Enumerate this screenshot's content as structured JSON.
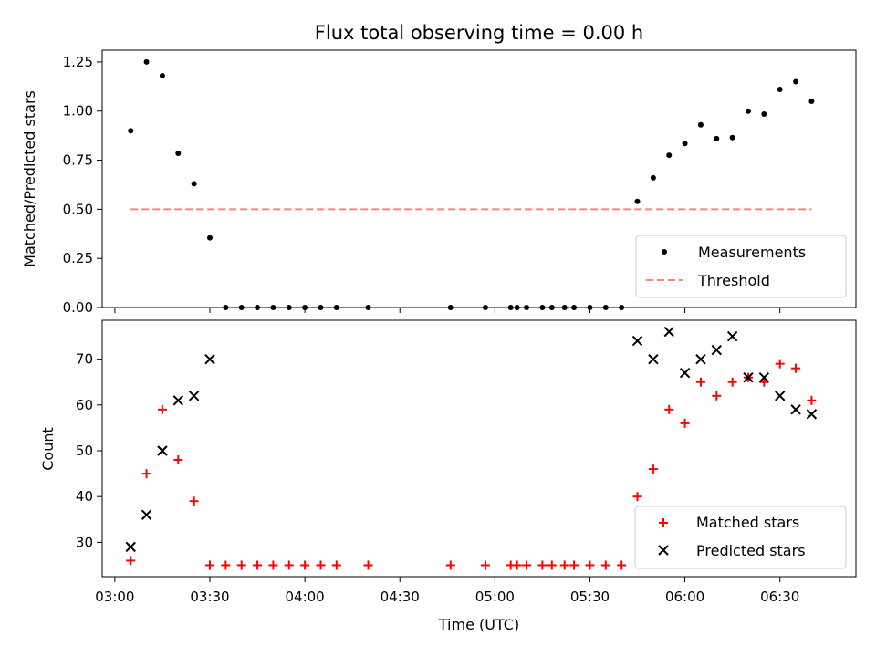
{
  "chart_data": [
    {
      "type": "scatter",
      "title": "Flux total observing time = 0.00 h",
      "ylabel": "Matched/Predicted stars",
      "xlabel": "",
      "ylim": [
        0,
        1.31
      ],
      "xlim": [
        "02:56",
        "06:54"
      ],
      "y_ticks": [
        0.0,
        0.25,
        0.5,
        0.75,
        1.0,
        1.25
      ],
      "y_tick_labels": [
        "0.00",
        "0.25",
        "0.50",
        "0.75",
        "1.00",
        "1.25"
      ],
      "x_ticks": [
        "03:00",
        "03:30",
        "04:00",
        "04:30",
        "05:00",
        "05:30",
        "06:00",
        "06:30"
      ],
      "legend_position": "lower-right",
      "series": [
        {
          "name": "Measurements",
          "marker": "dot",
          "color": "#000000",
          "x": [
            "03:05",
            "03:10",
            "03:15",
            "03:20",
            "03:25",
            "03:30",
            "03:35",
            "03:40",
            "03:45",
            "03:50",
            "03:55",
            "04:00",
            "04:05",
            "04:10",
            "04:20",
            "04:46",
            "04:57",
            "05:05",
            "05:07",
            "05:10",
            "05:15",
            "05:18",
            "05:22",
            "05:25",
            "05:30",
            "05:35",
            "05:40",
            "05:45",
            "05:50",
            "05:55",
            "06:00",
            "06:05",
            "06:10",
            "06:15",
            "06:20",
            "06:25",
            "06:30",
            "06:35",
            "06:40"
          ],
          "y": [
            0.9,
            1.25,
            1.18,
            0.785,
            0.63,
            0.355,
            0,
            0,
            0,
            0,
            0,
            0,
            0,
            0,
            0,
            0,
            0,
            0,
            0,
            0,
            0,
            0,
            0,
            0,
            0,
            0,
            0,
            0.54,
            0.66,
            0.775,
            0.835,
            0.93,
            0.86,
            0.865,
            1.0,
            0.985,
            1.11,
            1.15,
            1.05
          ]
        },
        {
          "name": "Threshold",
          "marker": "dashed-line",
          "color": "#ff8080",
          "x": [
            "03:05",
            "06:40"
          ],
          "y": [
            0.5,
            0.5
          ]
        }
      ]
    },
    {
      "type": "scatter",
      "title": "",
      "ylabel": "Count",
      "xlabel": "Time (UTC)",
      "ylim": [
        22.5,
        78.5
      ],
      "xlim": [
        "02:56",
        "06:54"
      ],
      "y_ticks": [
        30,
        40,
        50,
        60,
        70
      ],
      "y_tick_labels": [
        "30",
        "40",
        "50",
        "60",
        "70"
      ],
      "x_ticks": [
        "03:00",
        "03:30",
        "04:00",
        "04:30",
        "05:00",
        "05:30",
        "06:00",
        "06:30"
      ],
      "x_tick_labels": [
        "03:00",
        "03:30",
        "04:00",
        "04:30",
        "05:00",
        "05:30",
        "06:00",
        "06:30"
      ],
      "legend_position": "lower-right",
      "series": [
        {
          "name": "Matched stars",
          "marker": "plus",
          "color": "#ff0000",
          "x": [
            "03:05",
            "03:10",
            "03:15",
            "03:20",
            "03:25",
            "03:30",
            "03:35",
            "03:40",
            "03:45",
            "03:50",
            "03:55",
            "04:00",
            "04:05",
            "04:10",
            "04:20",
            "04:46",
            "04:57",
            "05:05",
            "05:07",
            "05:10",
            "05:15",
            "05:18",
            "05:22",
            "05:25",
            "05:30",
            "05:35",
            "05:40",
            "05:45",
            "05:50",
            "05:55",
            "06:00",
            "06:05",
            "06:10",
            "06:15",
            "06:20",
            "06:25",
            "06:30",
            "06:35",
            "06:40"
          ],
          "y": [
            26,
            45,
            59,
            48,
            39,
            25,
            25,
            25,
            25,
            25,
            25,
            25,
            25,
            25,
            25,
            25,
            25,
            25,
            25,
            25,
            25,
            25,
            25,
            25,
            25,
            25,
            25,
            40,
            46,
            59,
            56,
            65,
            62,
            65,
            66,
            65,
            69,
            68,
            61
          ]
        },
        {
          "name": "Predicted stars",
          "marker": "x",
          "color": "#000000",
          "x": [
            "03:05",
            "03:10",
            "03:15",
            "03:20",
            "03:25",
            "03:30",
            "05:45",
            "05:50",
            "05:55",
            "06:00",
            "06:05",
            "06:10",
            "06:15",
            "06:20",
            "06:25",
            "06:30",
            "06:35",
            "06:40"
          ],
          "y": [
            29,
            36,
            50,
            61,
            62,
            70,
            74,
            70,
            76,
            67,
            70,
            72,
            75,
            66,
            66,
            62,
            59,
            58
          ]
        }
      ]
    }
  ]
}
